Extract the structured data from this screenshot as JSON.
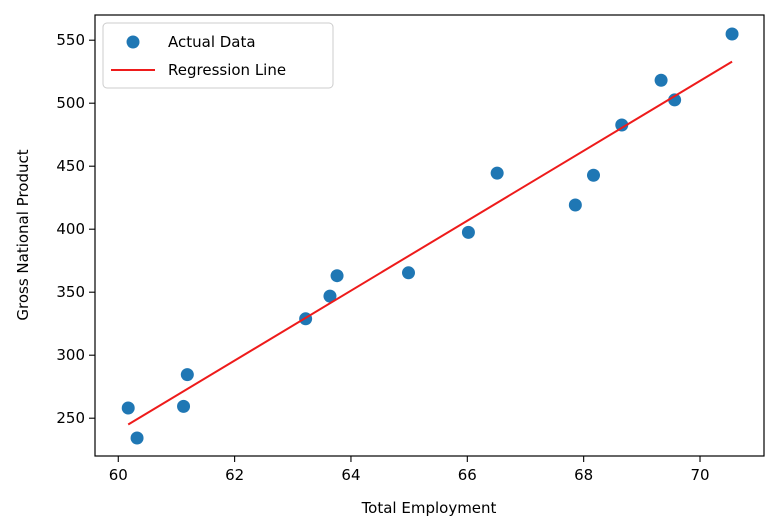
{
  "chart_data": {
    "type": "scatter",
    "title": "",
    "xlabel": "Total Employment",
    "ylabel": "Gross National Product",
    "xlim": [
      59.6,
      71.1
    ],
    "ylim": [
      220,
      570
    ],
    "xticks": [
      60,
      62,
      64,
      66,
      68,
      70
    ],
    "yticks": [
      250,
      300,
      350,
      400,
      450,
      500,
      550
    ],
    "grid": false,
    "legend_position": "top-left",
    "series": [
      {
        "name": "Actual Data",
        "kind": "scatter",
        "color": "#1f77b4",
        "points": [
          {
            "x": 60.171,
            "y": 258.1
          },
          {
            "x": 60.323,
            "y": 234.3
          },
          {
            "x": 61.122,
            "y": 259.4
          },
          {
            "x": 61.187,
            "y": 284.6
          },
          {
            "x": 63.221,
            "y": 328.9
          },
          {
            "x": 63.639,
            "y": 346.9
          },
          {
            "x": 63.761,
            "y": 363.1
          },
          {
            "x": 64.989,
            "y": 365.4
          },
          {
            "x": 66.019,
            "y": 397.5
          },
          {
            "x": 66.513,
            "y": 444.5
          },
          {
            "x": 67.857,
            "y": 419.2
          },
          {
            "x": 68.169,
            "y": 442.8
          },
          {
            "x": 68.655,
            "y": 482.7
          },
          {
            "x": 69.331,
            "y": 518.2
          },
          {
            "x": 69.564,
            "y": 502.6
          },
          {
            "x": 70.551,
            "y": 554.9
          }
        ]
      },
      {
        "name": "Regression Line",
        "kind": "line",
        "color": "#ee1b1b",
        "points": [
          {
            "x": 60.171,
            "y": 245
          },
          {
            "x": 70.551,
            "y": 533
          }
        ]
      }
    ]
  }
}
